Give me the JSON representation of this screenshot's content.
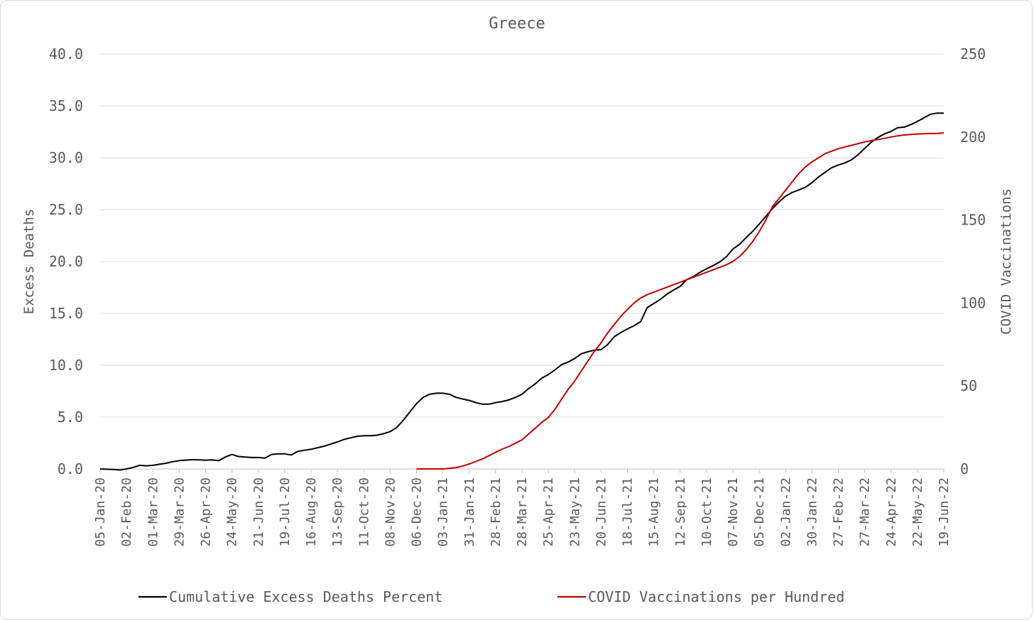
{
  "chart_data": {
    "type": "line",
    "title": "Greece",
    "ylabel_left": "Excess Deaths",
    "ylabel_right": "COVID Vaccinations",
    "ylim_left": [
      0,
      40
    ],
    "ylim_right": [
      0,
      250
    ],
    "yticks_left": [
      "0.0",
      "5.0",
      "10.0",
      "15.0",
      "20.0",
      "25.0",
      "30.0",
      "35.0",
      "40.0"
    ],
    "yticks_right": [
      "0",
      "50",
      "100",
      "150",
      "200",
      "250"
    ],
    "x_start": "2020-01-05",
    "x_end": "2022-06-19",
    "xtick_labels": [
      {
        "date": "2020-01-05",
        "label": "05-Jan-20"
      },
      {
        "date": "2020-02-02",
        "label": "02-Feb-20"
      },
      {
        "date": "2020-03-01",
        "label": "01-Mar-20"
      },
      {
        "date": "2020-03-29",
        "label": "29-Mar-20"
      },
      {
        "date": "2020-04-26",
        "label": "26-Apr-20"
      },
      {
        "date": "2020-05-24",
        "label": "24-May-20"
      },
      {
        "date": "2020-06-21",
        "label": "21-Jun-20"
      },
      {
        "date": "2020-07-19",
        "label": "19-Jul-20"
      },
      {
        "date": "2020-08-16",
        "label": "16-Aug-20"
      },
      {
        "date": "2020-09-13",
        "label": "13-Sep-20"
      },
      {
        "date": "2020-10-11",
        "label": "11-Oct-20"
      },
      {
        "date": "2020-11-08",
        "label": "08-Nov-20"
      },
      {
        "date": "2020-12-06",
        "label": "06-Dec-20"
      },
      {
        "date": "2021-01-03",
        "label": "03-Jan-21"
      },
      {
        "date": "2021-01-31",
        "label": "31-Jan-21"
      },
      {
        "date": "2021-02-28",
        "label": "28-Feb-21"
      },
      {
        "date": "2021-03-28",
        "label": "28-Mar-21"
      },
      {
        "date": "2021-04-25",
        "label": "25-Apr-21"
      },
      {
        "date": "2021-05-23",
        "label": "23-May-21"
      },
      {
        "date": "2021-06-20",
        "label": "20-Jun-21"
      },
      {
        "date": "2021-07-18",
        "label": "18-Jul-21"
      },
      {
        "date": "2021-08-15",
        "label": "15-Aug-21"
      },
      {
        "date": "2021-09-12",
        "label": "12-Sep-21"
      },
      {
        "date": "2021-10-10",
        "label": "10-Oct-21"
      },
      {
        "date": "2021-11-07",
        "label": "07-Nov-21"
      },
      {
        "date": "2021-12-05",
        "label": "05-Dec-21"
      },
      {
        "date": "2022-01-02",
        "label": "02-Jan-22"
      },
      {
        "date": "2022-01-30",
        "label": "30-Jan-22"
      },
      {
        "date": "2022-02-27",
        "label": "27-Feb-22"
      },
      {
        "date": "2022-03-27",
        "label": "27-Mar-22"
      },
      {
        "date": "2022-04-24",
        "label": "24-Apr-22"
      },
      {
        "date": "2022-05-22",
        "label": "22-May-22"
      },
      {
        "date": "2022-06-19",
        "label": "19-Jun-22"
      }
    ],
    "grid": true,
    "legend_position": "bottom",
    "series": [
      {
        "name": "Cumulative Excess Deaths Percent",
        "color": "#000000",
        "axis": "left",
        "points": [
          [
            "2020-01-05",
            0.0
          ],
          [
            "2020-01-19",
            -0.05
          ],
          [
            "2020-01-26",
            -0.1
          ],
          [
            "2020-02-02",
            0.0
          ],
          [
            "2020-02-09",
            0.15
          ],
          [
            "2020-02-16",
            0.35
          ],
          [
            "2020-02-23",
            0.3
          ],
          [
            "2020-03-01",
            0.35
          ],
          [
            "2020-03-08",
            0.45
          ],
          [
            "2020-03-15",
            0.55
          ],
          [
            "2020-03-22",
            0.7
          ],
          [
            "2020-03-29",
            0.8
          ],
          [
            "2020-04-05",
            0.85
          ],
          [
            "2020-04-12",
            0.9
          ],
          [
            "2020-04-19",
            0.88
          ],
          [
            "2020-04-26",
            0.85
          ],
          [
            "2020-05-03",
            0.88
          ],
          [
            "2020-05-10",
            0.8
          ],
          [
            "2020-05-17",
            1.15
          ],
          [
            "2020-05-24",
            1.4
          ],
          [
            "2020-05-31",
            1.2
          ],
          [
            "2020-06-07",
            1.15
          ],
          [
            "2020-06-14",
            1.1
          ],
          [
            "2020-06-21",
            1.1
          ],
          [
            "2020-06-28",
            1.05
          ],
          [
            "2020-07-05",
            1.4
          ],
          [
            "2020-07-12",
            1.45
          ],
          [
            "2020-07-19",
            1.45
          ],
          [
            "2020-07-26",
            1.35
          ],
          [
            "2020-08-02",
            1.7
          ],
          [
            "2020-08-09",
            1.8
          ],
          [
            "2020-08-16",
            1.9
          ],
          [
            "2020-08-23",
            2.05
          ],
          [
            "2020-08-30",
            2.2
          ],
          [
            "2020-09-06",
            2.4
          ],
          [
            "2020-09-13",
            2.6
          ],
          [
            "2020-09-20",
            2.85
          ],
          [
            "2020-09-27",
            3.0
          ],
          [
            "2020-10-04",
            3.15
          ],
          [
            "2020-10-11",
            3.2
          ],
          [
            "2020-10-18",
            3.2
          ],
          [
            "2020-10-25",
            3.25
          ],
          [
            "2020-11-01",
            3.4
          ],
          [
            "2020-11-08",
            3.6
          ],
          [
            "2020-11-15",
            4.0
          ],
          [
            "2020-11-22",
            4.7
          ],
          [
            "2020-11-29",
            5.5
          ],
          [
            "2020-12-06",
            6.3
          ],
          [
            "2020-12-13",
            6.9
          ],
          [
            "2020-12-20",
            7.2
          ],
          [
            "2020-12-27",
            7.3
          ],
          [
            "2021-01-03",
            7.3
          ],
          [
            "2021-01-10",
            7.2
          ],
          [
            "2021-01-17",
            6.9
          ],
          [
            "2021-01-24",
            6.75
          ],
          [
            "2021-01-31",
            6.6
          ],
          [
            "2021-02-07",
            6.4
          ],
          [
            "2021-02-14",
            6.25
          ],
          [
            "2021-02-21",
            6.25
          ],
          [
            "2021-02-28",
            6.4
          ],
          [
            "2021-03-07",
            6.5
          ],
          [
            "2021-03-14",
            6.65
          ],
          [
            "2021-03-21",
            6.9
          ],
          [
            "2021-03-28",
            7.2
          ],
          [
            "2021-04-04",
            7.75
          ],
          [
            "2021-04-11",
            8.2
          ],
          [
            "2021-04-18",
            8.75
          ],
          [
            "2021-04-25",
            9.1
          ],
          [
            "2021-05-02",
            9.55
          ],
          [
            "2021-05-09",
            10.05
          ],
          [
            "2021-05-16",
            10.3
          ],
          [
            "2021-05-23",
            10.65
          ],
          [
            "2021-05-30",
            11.1
          ],
          [
            "2021-06-06",
            11.3
          ],
          [
            "2021-06-13",
            11.45
          ],
          [
            "2021-06-20",
            11.5
          ],
          [
            "2021-06-27",
            12.0
          ],
          [
            "2021-07-04",
            12.75
          ],
          [
            "2021-07-11",
            13.15
          ],
          [
            "2021-07-18",
            13.5
          ],
          [
            "2021-07-25",
            13.8
          ],
          [
            "2021-08-01",
            14.2
          ],
          [
            "2021-08-08",
            15.55
          ],
          [
            "2021-08-15",
            15.95
          ],
          [
            "2021-08-22",
            16.35
          ],
          [
            "2021-08-29",
            16.85
          ],
          [
            "2021-09-05",
            17.25
          ],
          [
            "2021-09-12",
            17.6
          ],
          [
            "2021-09-19",
            18.25
          ],
          [
            "2021-09-26",
            18.55
          ],
          [
            "2021-10-03",
            18.95
          ],
          [
            "2021-10-10",
            19.3
          ],
          [
            "2021-10-17",
            19.6
          ],
          [
            "2021-10-24",
            19.95
          ],
          [
            "2021-10-31",
            20.45
          ],
          [
            "2021-11-07",
            21.2
          ],
          [
            "2021-11-14",
            21.65
          ],
          [
            "2021-11-21",
            22.3
          ],
          [
            "2021-11-28",
            22.9
          ],
          [
            "2021-12-05",
            23.6
          ],
          [
            "2021-12-12",
            24.35
          ],
          [
            "2021-12-19",
            25.1
          ],
          [
            "2021-12-26",
            25.75
          ],
          [
            "2022-01-02",
            26.3
          ],
          [
            "2022-01-09",
            26.65
          ],
          [
            "2022-01-16",
            26.9
          ],
          [
            "2022-01-23",
            27.15
          ],
          [
            "2022-01-30",
            27.6
          ],
          [
            "2022-02-06",
            28.15
          ],
          [
            "2022-02-13",
            28.6
          ],
          [
            "2022-02-20",
            29.05
          ],
          [
            "2022-02-27",
            29.3
          ],
          [
            "2022-03-06",
            29.5
          ],
          [
            "2022-03-13",
            29.8
          ],
          [
            "2022-03-20",
            30.3
          ],
          [
            "2022-03-27",
            30.9
          ],
          [
            "2022-04-03",
            31.5
          ],
          [
            "2022-04-10",
            31.95
          ],
          [
            "2022-04-17",
            32.3
          ],
          [
            "2022-04-24",
            32.55
          ],
          [
            "2022-05-01",
            32.9
          ],
          [
            "2022-05-08",
            32.95
          ],
          [
            "2022-05-15",
            33.2
          ],
          [
            "2022-05-22",
            33.5
          ],
          [
            "2022-05-29",
            33.85
          ],
          [
            "2022-06-05",
            34.2
          ],
          [
            "2022-06-12",
            34.3
          ],
          [
            "2022-06-19",
            34.3
          ]
        ]
      },
      {
        "name": "COVID Vaccinations per Hundred",
        "color": "#c00000",
        "axis": "right",
        "points": [
          [
            "2020-12-06",
            0
          ],
          [
            "2020-12-13",
            0
          ],
          [
            "2020-12-20",
            0
          ],
          [
            "2020-12-27",
            0
          ],
          [
            "2021-01-03",
            0
          ],
          [
            "2021-01-10",
            0.4
          ],
          [
            "2021-01-17",
            0.8
          ],
          [
            "2021-01-24",
            1.8
          ],
          [
            "2021-01-31",
            3.0
          ],
          [
            "2021-02-07",
            4.5
          ],
          [
            "2021-02-14",
            6.0
          ],
          [
            "2021-02-21",
            8.0
          ],
          [
            "2021-02-28",
            10.0
          ],
          [
            "2021-03-07",
            12.0
          ],
          [
            "2021-03-14",
            13.5
          ],
          [
            "2021-03-21",
            15.5
          ],
          [
            "2021-03-28",
            17.5
          ],
          [
            "2021-04-04",
            21.0
          ],
          [
            "2021-04-11",
            24.5
          ],
          [
            "2021-04-18",
            28.0
          ],
          [
            "2021-04-25",
            31.0
          ],
          [
            "2021-05-02",
            36.0
          ],
          [
            "2021-05-09",
            42.0
          ],
          [
            "2021-05-16",
            48.0
          ],
          [
            "2021-05-23",
            53.0
          ],
          [
            "2021-05-30",
            59.0
          ],
          [
            "2021-06-06",
            65.0
          ],
          [
            "2021-06-13",
            71.0
          ],
          [
            "2021-06-20",
            76.0
          ],
          [
            "2021-06-27",
            82.0
          ],
          [
            "2021-07-04",
            87.0
          ],
          [
            "2021-07-11",
            92.0
          ],
          [
            "2021-07-18",
            96.0
          ],
          [
            "2021-07-25",
            100.0
          ],
          [
            "2021-08-01",
            103.0
          ],
          [
            "2021-08-08",
            105.0
          ],
          [
            "2021-08-15",
            106.5
          ],
          [
            "2021-08-22",
            108.0
          ],
          [
            "2021-08-29",
            109.5
          ],
          [
            "2021-09-05",
            111.0
          ],
          [
            "2021-09-12",
            112.5
          ],
          [
            "2021-09-19",
            114.0
          ],
          [
            "2021-09-26",
            115.5
          ],
          [
            "2021-10-03",
            117.0
          ],
          [
            "2021-10-10",
            118.5
          ],
          [
            "2021-10-17",
            120.0
          ],
          [
            "2021-10-24",
            121.5
          ],
          [
            "2021-10-31",
            123.0
          ],
          [
            "2021-11-07",
            125.0
          ],
          [
            "2021-11-14",
            128.0
          ],
          [
            "2021-11-21",
            132.0
          ],
          [
            "2021-11-28",
            137.0
          ],
          [
            "2021-12-05",
            143.0
          ],
          [
            "2021-12-12",
            150.0
          ],
          [
            "2021-12-19",
            158.0
          ],
          [
            "2021-12-26",
            163.0
          ],
          [
            "2022-01-02",
            168.0
          ],
          [
            "2022-01-09",
            173.0
          ],
          [
            "2022-01-16",
            178.0
          ],
          [
            "2022-01-23",
            182.0
          ],
          [
            "2022-01-30",
            185.0
          ],
          [
            "2022-02-06",
            187.5
          ],
          [
            "2022-02-13",
            190.0
          ],
          [
            "2022-02-20",
            191.5
          ],
          [
            "2022-02-27",
            193.0
          ],
          [
            "2022-03-06",
            194.0
          ],
          [
            "2022-03-13",
            195.0
          ],
          [
            "2022-03-20",
            196.0
          ],
          [
            "2022-03-27",
            197.0
          ],
          [
            "2022-04-03",
            197.8
          ],
          [
            "2022-04-10",
            198.5
          ],
          [
            "2022-04-17",
            199.2
          ],
          [
            "2022-04-24",
            200.0
          ],
          [
            "2022-05-01",
            200.7
          ],
          [
            "2022-05-08",
            201.2
          ],
          [
            "2022-05-15",
            201.5
          ],
          [
            "2022-05-22",
            201.8
          ],
          [
            "2022-05-29",
            202.0
          ],
          [
            "2022-06-05",
            202.1
          ],
          [
            "2022-06-12",
            202.2
          ],
          [
            "2022-06-19",
            202.5
          ]
        ]
      }
    ]
  }
}
